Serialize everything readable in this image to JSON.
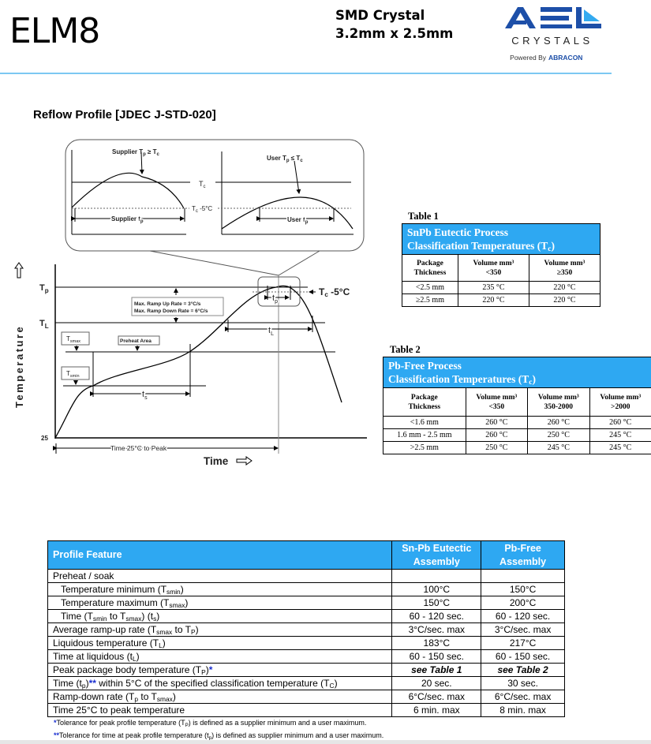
{
  "header": {
    "title": "ELM8",
    "subtitle_line1": "SMD Crystal",
    "subtitle_line2": "3.2mm x 2.5mm",
    "logo": {
      "main": "AEL",
      "sub": "CRYSTALS",
      "powered_by": "Powered By",
      "brand": "ABRACON"
    }
  },
  "section_title": "Reflow Profile [JDEC J-STD-020]",
  "diagram": {
    "inset_left_label": "Supplier T",
    "inset_left_label_sub": "p",
    "inset_left_label_rel": " ≥ T",
    "inset_left_label_rel_sub": "c",
    "inset_left_tp": "Supplier t",
    "inset_right_label": "User T",
    "inset_right_label_rel": " ≤ T",
    "inset_right_tp": "User t",
    "tc": "T",
    "tc_sub": "c",
    "tc_minus5": " -5°C",
    "tp": "T",
    "tp_sub": "p",
    "tl": "T",
    "tl_sub": "L",
    "tsmax": "T",
    "tsmax_sub": "smax",
    "tsmin": "T",
    "tsmin_sub": "smin",
    "preheat": "Preheat Area",
    "ramp_up": "Max. Ramp Up Rate = 3°C/s",
    "ramp_down": "Max. Ramp Down Rate = 6°C/s",
    "t_small": "t",
    "ts_sub": "s",
    "tl_time_sub": "L",
    "tp_time_sub": "p",
    "y_label": "Temperature",
    "y_origin": "25",
    "x_label": "Time",
    "time_to_peak": "Time 25°C to Peak"
  },
  "table1": {
    "label": "Table 1",
    "title_line1": "SnPb Eutectic Process",
    "title_line2": "Classification Temperatures (T",
    "title_sub": "c",
    "title_end": ")",
    "columns": [
      [
        "Package",
        "Thickness"
      ],
      [
        "Volume mm³",
        "<350"
      ],
      [
        "Volume mm³",
        "≥350"
      ]
    ],
    "rows": [
      [
        "<2.5 mm",
        "235 °C",
        "220 °C"
      ],
      [
        "≥2.5 mm",
        "220 °C",
        "220 °C"
      ]
    ]
  },
  "table2": {
    "label": "Table 2",
    "title_line1": "Pb-Free Process",
    "title_line2": "Classification Temperatures (T",
    "title_sub": "c",
    "title_end": ")",
    "columns": [
      [
        "Package",
        "Thickness"
      ],
      [
        "Volume mm³",
        "<350"
      ],
      [
        "Volume mm³",
        "350-2000"
      ],
      [
        "Volume mm³",
        ">2000"
      ]
    ],
    "rows": [
      [
        "<1.6 mm",
        "260 °C",
        "260 °C",
        "260 °C"
      ],
      [
        "1.6 mm - 2.5 mm",
        "260 °C",
        "250 °C",
        "245 °C"
      ],
      [
        ">2.5 mm",
        "250 °C",
        "245 °C",
        "245 °C"
      ]
    ]
  },
  "profile_table": {
    "headers": [
      "Profile Feature",
      "Sn-Pb Eutectic Assembly",
      "Pb-Free Assembly"
    ],
    "rows": [
      {
        "feature": [
          {
            "t": "Preheat / soak"
          }
        ],
        "snpb": "",
        "pbfree": "",
        "indent": false
      },
      {
        "feature": [
          {
            "t": "Temperature minimum (T"
          },
          {
            "s": "smin"
          },
          {
            "t": ")"
          }
        ],
        "snpb": "100°C",
        "pbfree": "150°C",
        "indent": true
      },
      {
        "feature": [
          {
            "t": "Temperature maximum (T"
          },
          {
            "s": "smax"
          },
          {
            "t": ")"
          }
        ],
        "snpb": "150°C",
        "pbfree": "200°C",
        "indent": true
      },
      {
        "feature": [
          {
            "t": "Time (T"
          },
          {
            "s": "smin"
          },
          {
            "t": " to T"
          },
          {
            "s": "smax"
          },
          {
            "t": ") (t"
          },
          {
            "s": "s"
          },
          {
            "t": ")"
          }
        ],
        "snpb": "60 - 120 sec.",
        "pbfree": "60 - 120 sec.",
        "indent": true
      },
      {
        "feature": [
          {
            "t": "Average ramp-up rate (T"
          },
          {
            "s": "smax"
          },
          {
            "t": " to T"
          },
          {
            "s": "P"
          },
          {
            "t": ")"
          }
        ],
        "snpb": "3°C/sec. max",
        "pbfree": "3°C/sec. max",
        "indent": false
      },
      {
        "feature": [
          {
            "t": "Liquidous temperature (T"
          },
          {
            "s": "L"
          },
          {
            "t": ")"
          }
        ],
        "snpb": "183°C",
        "pbfree": "217°C",
        "indent": false
      },
      {
        "feature": [
          {
            "t": "Time at liquidous (t"
          },
          {
            "s": "L"
          },
          {
            "t": ")"
          }
        ],
        "snpb": "60 - 150 sec.",
        "pbfree": "60 - 150 sec.",
        "indent": false
      },
      {
        "feature": [
          {
            "t": "Peak package body temperature (T"
          },
          {
            "s": "P"
          },
          {
            "t": ")"
          },
          {
            "star": "*"
          }
        ],
        "snpb": "see Table 1",
        "pbfree": "see Table 2",
        "indent": false,
        "bold_values": true
      },
      {
        "feature": [
          {
            "t": "Time (t"
          },
          {
            "s": "p"
          },
          {
            "t": ")"
          },
          {
            "star": "**"
          },
          {
            "t": " within 5°C of the specified classification temperature (T"
          },
          {
            "s": "C"
          },
          {
            "t": ")"
          }
        ],
        "snpb": "20 sec.",
        "pbfree": "30 sec.",
        "indent": false
      },
      {
        "feature": [
          {
            "t": "Ramp-down rate (T"
          },
          {
            "s": "p"
          },
          {
            "t": " to T"
          },
          {
            "s": "smax"
          },
          {
            "t": ")"
          }
        ],
        "snpb": "6°C/sec. max",
        "pbfree": "6°C/sec. max",
        "indent": false
      },
      {
        "feature": [
          {
            "t": "Time 25°C to peak temperature"
          }
        ],
        "snpb": "6 min. max",
        "pbfree": "8 min. max",
        "indent": false
      }
    ]
  },
  "footnotes": [
    [
      {
        "star": "*"
      },
      {
        "t": "Tolerance for peak profile temperature (T"
      },
      {
        "s": "P"
      },
      {
        "t": ") is defined as a supplier minimum and a user maximum."
      }
    ],
    [
      {
        "star": "**"
      },
      {
        "t": "Tolerance for time at peak profile temperature (t"
      },
      {
        "s": "p"
      },
      {
        "t": ") is defined as supplier minimum and a user maximum."
      }
    ]
  ],
  "colors": {
    "accent_blue": "#2ea8f2",
    "logo_blue": "#1d4fa8",
    "logo_light": "#33aaf0",
    "rule": "#7cc8f2",
    "star": "#1a2fd0"
  }
}
